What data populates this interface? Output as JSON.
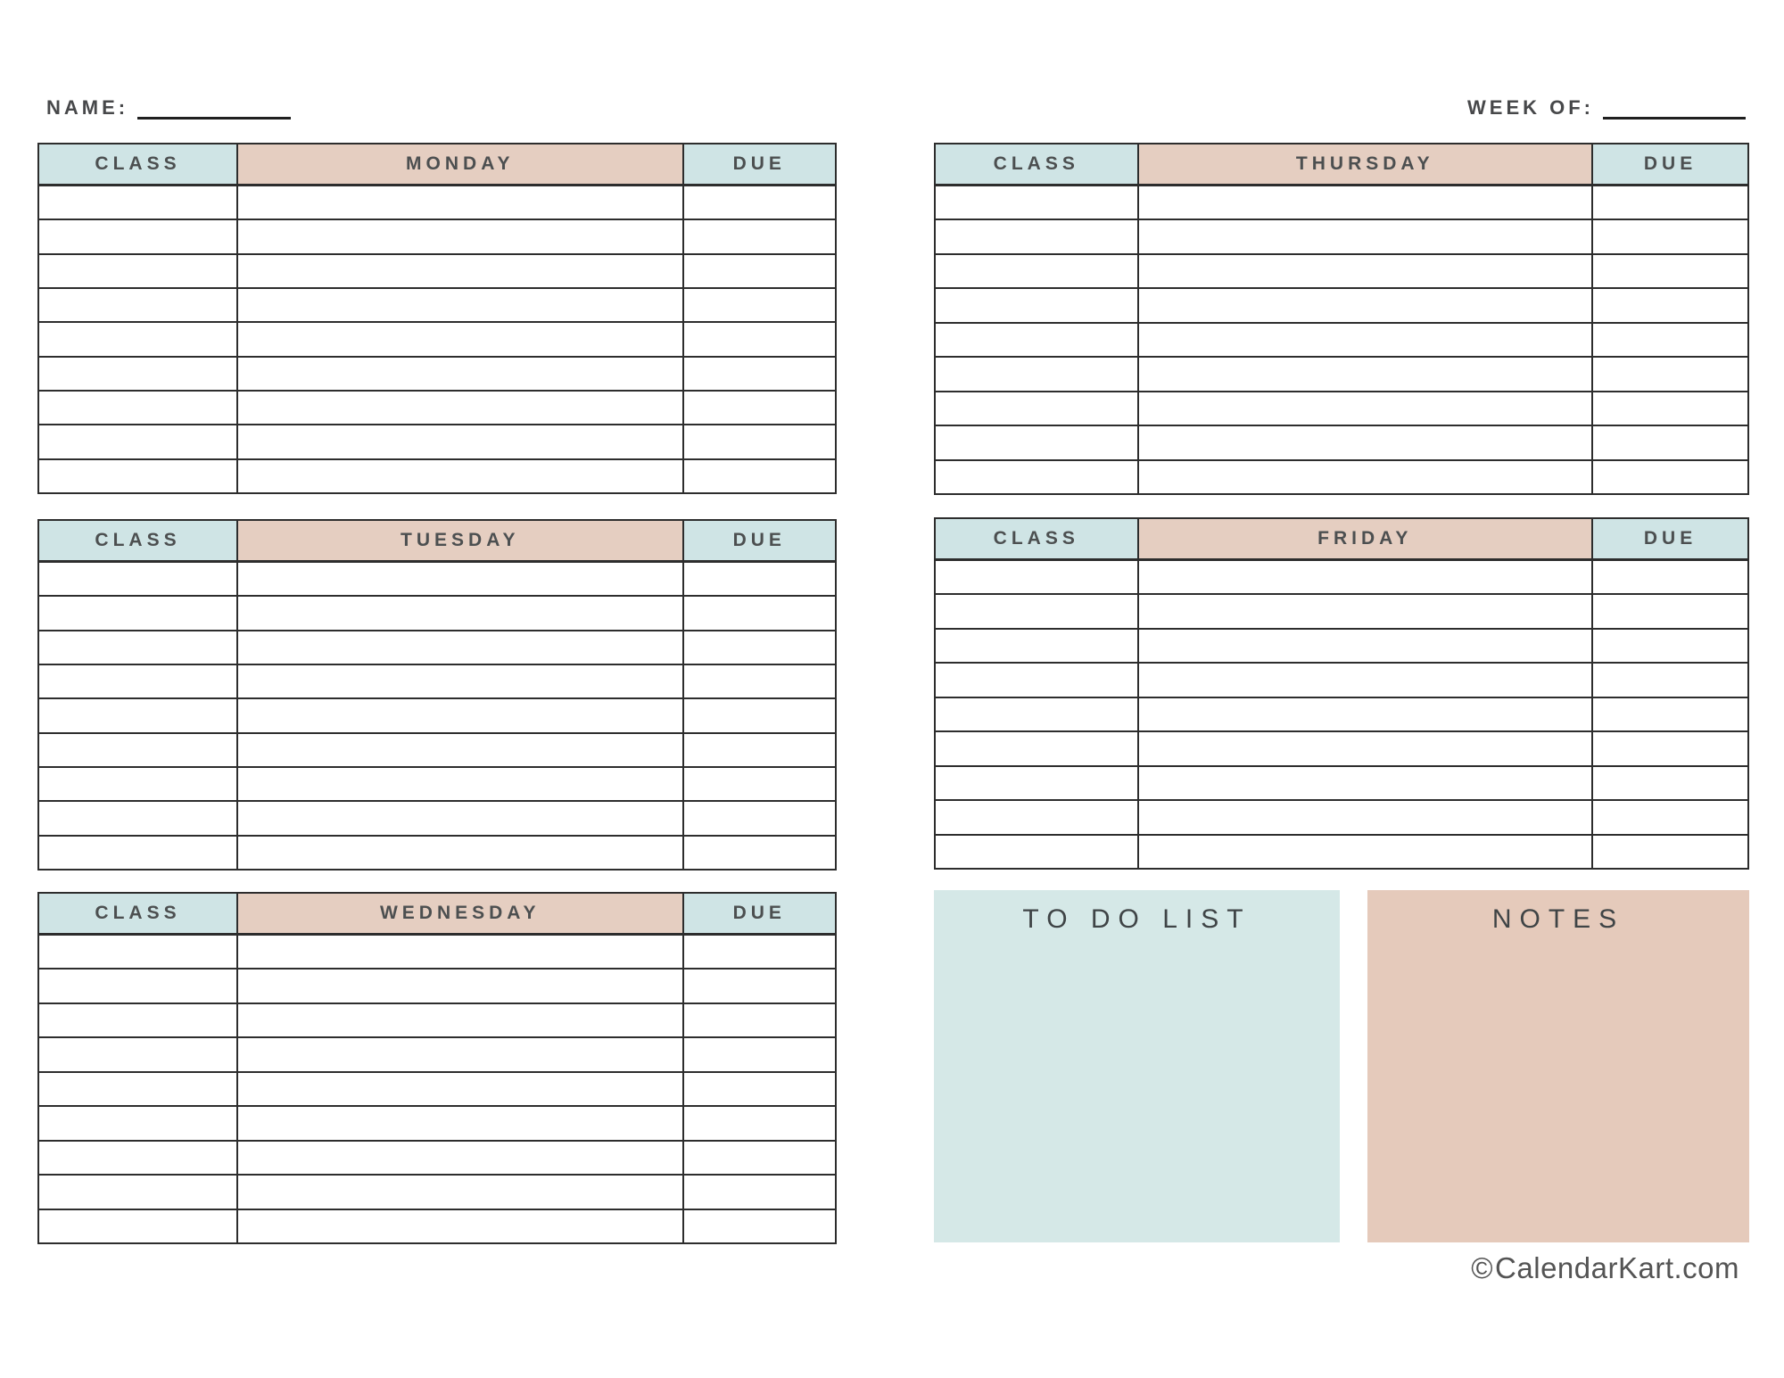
{
  "header": {
    "name_label": "NAME:",
    "week_of_label": "WEEK OF:"
  },
  "tables": [
    {
      "id": "monday",
      "class_label": "CLASS",
      "day_label": "MONDAY",
      "due_label": "DUE",
      "row_count": 9
    },
    {
      "id": "tuesday",
      "class_label": "CLASS",
      "day_label": "TUESDAY",
      "due_label": "DUE",
      "row_count": 9
    },
    {
      "id": "wednesday",
      "class_label": "CLASS",
      "day_label": "WEDNESDAY",
      "due_label": "DUE",
      "row_count": 9
    },
    {
      "id": "thursday",
      "class_label": "CLASS",
      "day_label": "THURSDAY",
      "due_label": "DUE",
      "row_count": 9
    },
    {
      "id": "friday",
      "class_label": "CLASS",
      "day_label": "FRIDAY",
      "due_label": "DUE",
      "row_count": 9
    }
  ],
  "panels": {
    "todo_title": "TO DO LIST",
    "notes_title": "NOTES"
  },
  "footer": {
    "copyright_symbol": "©",
    "site": "CalendarKart.com"
  },
  "colors": {
    "header_blue": "#cfe4e5",
    "header_tan": "#e5cec1",
    "todo_bg": "#d5e8e7",
    "notes_bg": "#e5cabb",
    "line_dark": "#2d2d2d",
    "text_dark": "#4c4f50"
  }
}
